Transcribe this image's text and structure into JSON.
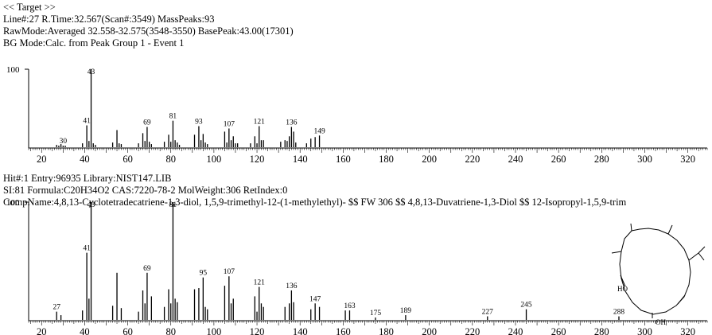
{
  "header": {
    "target": "<< Target >>",
    "line1": "Line#:27  R.Time:32.567(Scan#:3549)  MassPeaks:93",
    "line2": "RawMode:Averaged 32.558-32.575(3548-3550) BasePeak:43.00(17301)",
    "line3": "BG Mode:Calc. from Peak  Group 1 - Event 1"
  },
  "hit": {
    "line1": "Hit#:1  Entry:96935  Library:NIST147.LIB",
    "line2": "SI:81  Formula:C20H34O2  CAS:7220-78-2  MolWeight:306  RetIndex:0",
    "line3": "CompName:4,8,13-Cyclotetradecatriene-1,3-diol, 1,5,9-trimethyl-12-(1-methylethyl)- $$ FW 306 $$ 4,8,13-Duvatriene-1,3-Diol $$ 12-Isopropyl-1,5,9-trim"
  },
  "structure": {
    "label_ho": "HO",
    "label_oh": "OH"
  },
  "chart_data": [
    {
      "type": "bar",
      "name": "target-spectrum",
      "xlim": [
        14,
        329
      ],
      "ylim": [
        0,
        100
      ],
      "x_ticks": [
        20,
        40,
        60,
        80,
        100,
        120,
        140,
        160,
        180,
        200,
        220,
        240,
        260,
        280,
        300,
        320
      ],
      "y_ticks": [
        100
      ],
      "peaks": [
        [
          27,
          3
        ],
        [
          28,
          2
        ],
        [
          29,
          4
        ],
        [
          30,
          2
        ],
        [
          31,
          2
        ],
        [
          39,
          5
        ],
        [
          41,
          28
        ],
        [
          42,
          8
        ],
        [
          43,
          100
        ],
        [
          44,
          5
        ],
        [
          45,
          3
        ],
        [
          53,
          6
        ],
        [
          55,
          22
        ],
        [
          56,
          5
        ],
        [
          57,
          4
        ],
        [
          65,
          5
        ],
        [
          67,
          18
        ],
        [
          68,
          8
        ],
        [
          69,
          26
        ],
        [
          70,
          7
        ],
        [
          71,
          4
        ],
        [
          77,
          7
        ],
        [
          79,
          16
        ],
        [
          80,
          7
        ],
        [
          81,
          34
        ],
        [
          82,
          9
        ],
        [
          83,
          6
        ],
        [
          84,
          3
        ],
        [
          91,
          16
        ],
        [
          93,
          27
        ],
        [
          94,
          9
        ],
        [
          95,
          17
        ],
        [
          96,
          6
        ],
        [
          97,
          4
        ],
        [
          105,
          20
        ],
        [
          106,
          6
        ],
        [
          107,
          24
        ],
        [
          108,
          9
        ],
        [
          109,
          14
        ],
        [
          110,
          5
        ],
        [
          111,
          5
        ],
        [
          117,
          5
        ],
        [
          119,
          14
        ],
        [
          120,
          5
        ],
        [
          121,
          27
        ],
        [
          122,
          9
        ],
        [
          123,
          9
        ],
        [
          131,
          7
        ],
        [
          133,
          9
        ],
        [
          134,
          8
        ],
        [
          135,
          14
        ],
        [
          136,
          26
        ],
        [
          137,
          20
        ],
        [
          138,
          6
        ],
        [
          143,
          5
        ],
        [
          145,
          11
        ],
        [
          147,
          13
        ],
        [
          149,
          15
        ]
      ],
      "peak_labels": [
        {
          "x": 30,
          "text": "30"
        },
        {
          "x": 41,
          "text": "41"
        },
        {
          "x": 43,
          "text": "43"
        },
        {
          "x": 69,
          "text": "69"
        },
        {
          "x": 81,
          "text": "81"
        },
        {
          "x": 93,
          "text": "93"
        },
        {
          "x": 107,
          "text": "107"
        },
        {
          "x": 121,
          "text": "121"
        },
        {
          "x": 136,
          "text": "136"
        },
        {
          "x": 149,
          "text": "149"
        }
      ]
    },
    {
      "type": "bar",
      "name": "library-spectrum",
      "xlim": [
        14,
        329
      ],
      "ylim": [
        0,
        100
      ],
      "x_ticks": [
        20,
        40,
        60,
        80,
        100,
        120,
        140,
        160,
        180,
        200,
        220,
        240,
        260,
        280,
        300,
        320
      ],
      "y_ticks": [
        100
      ],
      "peaks": [
        [
          27,
          7
        ],
        [
          29,
          4
        ],
        [
          39,
          8
        ],
        [
          41,
          57
        ],
        [
          42,
          18
        ],
        [
          43,
          100
        ],
        [
          53,
          12
        ],
        [
          55,
          40
        ],
        [
          57,
          10
        ],
        [
          65,
          7
        ],
        [
          67,
          25
        ],
        [
          68,
          14
        ],
        [
          69,
          40
        ],
        [
          71,
          20
        ],
        [
          77,
          11
        ],
        [
          79,
          26
        ],
        [
          80,
          14
        ],
        [
          81,
          100
        ],
        [
          82,
          18
        ],
        [
          83,
          15
        ],
        [
          91,
          26
        ],
        [
          93,
          27
        ],
        [
          95,
          36
        ],
        [
          96,
          11
        ],
        [
          97,
          9
        ],
        [
          105,
          29
        ],
        [
          107,
          37
        ],
        [
          108,
          14
        ],
        [
          109,
          18
        ],
        [
          119,
          20
        ],
        [
          120,
          7
        ],
        [
          121,
          28
        ],
        [
          122,
          14
        ],
        [
          123,
          11
        ],
        [
          133,
          11
        ],
        [
          135,
          14
        ],
        [
          136,
          25
        ],
        [
          137,
          15
        ],
        [
          145,
          9
        ],
        [
          147,
          14
        ],
        [
          149,
          11
        ],
        [
          161,
          8
        ],
        [
          163,
          8
        ],
        [
          175,
          2
        ],
        [
          189,
          4
        ],
        [
          227,
          3
        ],
        [
          245,
          9
        ],
        [
          288,
          3
        ]
      ],
      "peak_labels": [
        {
          "x": 27,
          "text": "27"
        },
        {
          "x": 41,
          "text": "41"
        },
        {
          "x": 43,
          "text": "43"
        },
        {
          "x": 69,
          "text": "69"
        },
        {
          "x": 81,
          "text": "81"
        },
        {
          "x": 95,
          "text": "95"
        },
        {
          "x": 107,
          "text": "107"
        },
        {
          "x": 121,
          "text": "121"
        },
        {
          "x": 136,
          "text": "136"
        },
        {
          "x": 147,
          "text": "147"
        },
        {
          "x": 163,
          "text": "163"
        },
        {
          "x": 175,
          "text": "175"
        },
        {
          "x": 189,
          "text": "189"
        },
        {
          "x": 227,
          "text": "227"
        },
        {
          "x": 245,
          "text": "245"
        },
        {
          "x": 288,
          "text": "288"
        }
      ]
    }
  ]
}
